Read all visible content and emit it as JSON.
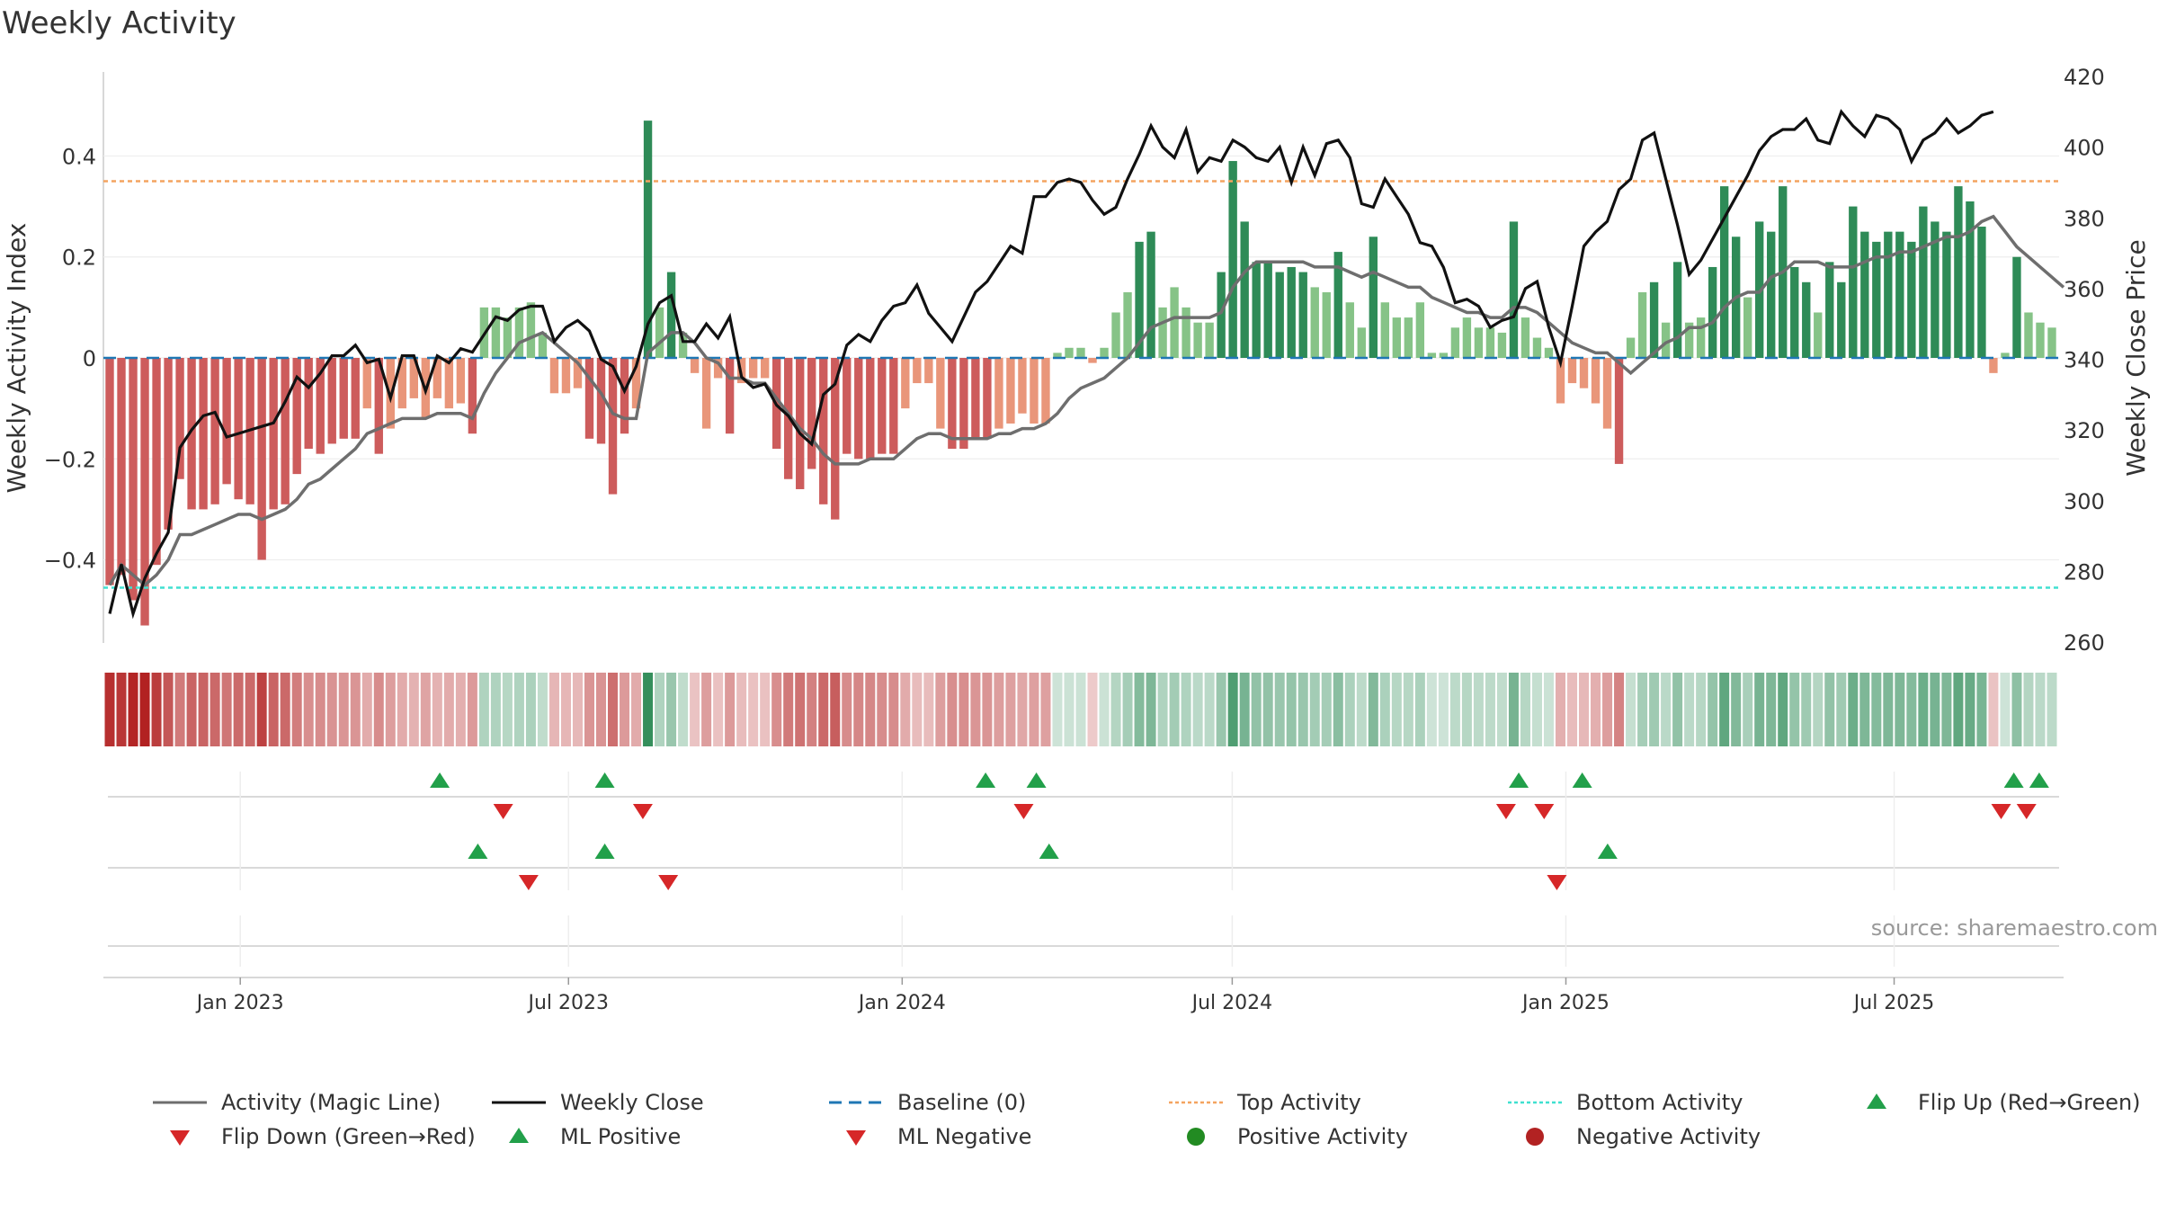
{
  "title": "Weekly Activity",
  "source": "source: sharemaestro.com",
  "colors": {
    "pos_strong": "#2e8b57",
    "pos_light": "#86c387",
    "neg_strong": "#cd5c5c",
    "neg_light": "#e9967a",
    "magic_line": "#6e6e6e",
    "close_line": "#111111",
    "baseline": "#1f77b4",
    "top": "#f4a460",
    "bottom": "#40e0d0",
    "tri_up": "#22a04a",
    "tri_down": "#d62728"
  },
  "chart_data": {
    "type": "bar",
    "title": "Weekly Activity",
    "ylabel": "Weekly Activity Index",
    "y2label": "Weekly Close Price",
    "ylim": [
      -0.57,
      0.57
    ],
    "y2lim": [
      255,
      420
    ],
    "yticks": [
      -0.4,
      -0.2,
      0,
      0.2,
      0.4
    ],
    "ytick_labels": [
      "−0.4",
      "−0.2",
      "0",
      "0.2",
      "0.4"
    ],
    "y2ticks": [
      260,
      280,
      300,
      320,
      340,
      360,
      380,
      400,
      420
    ],
    "start_date": "2022-10-21",
    "end_date": "2025-09-26",
    "xticks": [
      "2023-01-01",
      "2023-07-01",
      "2024-01-01",
      "2024-07-01",
      "2025-01-01",
      "2025-07-01"
    ],
    "xtick_labels": [
      "Jan 2023",
      "Jul 2023",
      "Jan 2024",
      "Jul 2024",
      "Jan 2025",
      "Jul 2025"
    ],
    "top_activity": 0.35,
    "bottom_activity": -0.455,
    "activity": [
      -0.45,
      -0.43,
      -0.48,
      -0.53,
      -0.41,
      -0.34,
      -0.24,
      -0.3,
      -0.3,
      -0.29,
      -0.25,
      -0.28,
      -0.29,
      -0.4,
      -0.3,
      -0.29,
      -0.23,
      -0.18,
      -0.19,
      -0.17,
      -0.16,
      -0.16,
      -0.1,
      -0.19,
      -0.14,
      -0.1,
      -0.08,
      -0.12,
      -0.08,
      -0.1,
      -0.09,
      -0.15,
      0.1,
      0.1,
      0.08,
      0.1,
      0.11,
      0.05,
      -0.07,
      -0.07,
      -0.06,
      -0.16,
      -0.17,
      -0.27,
      -0.15,
      -0.1,
      0.47,
      0.1,
      0.17,
      0.05,
      -0.03,
      -0.14,
      -0.04,
      -0.15,
      -0.05,
      -0.04,
      -0.04,
      -0.18,
      -0.24,
      -0.26,
      -0.22,
      -0.29,
      -0.32,
      -0.19,
      -0.2,
      -0.2,
      -0.19,
      -0.19,
      -0.1,
      -0.05,
      -0.05,
      -0.14,
      -0.18,
      -0.18,
      -0.16,
      -0.16,
      -0.14,
      -0.13,
      -0.11,
      -0.13,
      -0.13,
      0.01,
      0.02,
      0.02,
      -0.01,
      0.02,
      0.09,
      0.13,
      0.23,
      0.25,
      0.1,
      0.14,
      0.1,
      0.07,
      0.07,
      0.17,
      0.39,
      0.27,
      0.19,
      0.19,
      0.17,
      0.18,
      0.17,
      0.14,
      0.13,
      0.21,
      0.11,
      0.06,
      0.24,
      0.11,
      0.08,
      0.08,
      0.11,
      0.01,
      0.01,
      0.06,
      0.08,
      0.06,
      0.06,
      0.05,
      0.27,
      0.08,
      0.04,
      0.02,
      -0.09,
      -0.05,
      -0.06,
      -0.09,
      -0.14,
      -0.21,
      0.04,
      0.13,
      0.15,
      0.07,
      0.19,
      0.07,
      0.08,
      0.18,
      0.34,
      0.24,
      0.12,
      0.27,
      0.25,
      0.34,
      0.18,
      0.15,
      0.09,
      0.19,
      0.15,
      0.3,
      0.25,
      0.23,
      0.25,
      0.25,
      0.23,
      0.3,
      0.27,
      0.25,
      0.34,
      0.31,
      0.26,
      -0.03,
      0.01,
      0.2,
      0.09,
      0.07,
      0.06
    ],
    "magic_line": [
      -0.45,
      -0.41,
      -0.43,
      -0.45,
      -0.43,
      -0.4,
      -0.35,
      -0.35,
      -0.34,
      -0.33,
      -0.32,
      -0.31,
      -0.31,
      -0.32,
      -0.31,
      -0.3,
      -0.28,
      -0.25,
      -0.24,
      -0.22,
      -0.2,
      -0.18,
      -0.15,
      -0.14,
      -0.13,
      -0.12,
      -0.12,
      -0.12,
      -0.11,
      -0.11,
      -0.11,
      -0.12,
      -0.07,
      -0.03,
      0,
      0.03,
      0.04,
      0.05,
      0.03,
      0.01,
      -0.01,
      -0.04,
      -0.07,
      -0.11,
      -0.12,
      -0.12,
      0.01,
      0.03,
      0.05,
      0.05,
      0.03,
      0,
      -0.01,
      -0.04,
      -0.04,
      -0.05,
      -0.05,
      -0.08,
      -0.11,
      -0.14,
      -0.16,
      -0.19,
      -0.21,
      -0.21,
      -0.21,
      -0.2,
      -0.2,
      -0.2,
      -0.18,
      -0.16,
      -0.15,
      -0.15,
      -0.16,
      -0.16,
      -0.16,
      -0.16,
      -0.15,
      -0.15,
      -0.14,
      -0.14,
      -0.13,
      -0.11,
      -0.08,
      -0.06,
      -0.05,
      -0.04,
      -0.02,
      0,
      0.03,
      0.06,
      0.07,
      0.08,
      0.08,
      0.08,
      0.08,
      0.09,
      0.14,
      0.17,
      0.19,
      0.19,
      0.19,
      0.19,
      0.19,
      0.18,
      0.18,
      0.18,
      0.17,
      0.16,
      0.17,
      0.16,
      0.15,
      0.14,
      0.14,
      0.12,
      0.11,
      0.1,
      0.09,
      0.09,
      0.08,
      0.08,
      0.1,
      0.1,
      0.09,
      0.07,
      0.05,
      0.03,
      0.02,
      0.01,
      0.01,
      -0.01,
      -0.03,
      -0.01,
      0.01,
      0.03,
      0.04,
      0.06,
      0.06,
      0.07,
      0.1,
      0.12,
      0.13,
      0.13,
      0.16,
      0.17,
      0.19,
      0.19,
      0.19,
      0.18,
      0.18,
      0.18,
      0.19,
      0.2,
      0.2,
      0.21,
      0.21,
      0.22,
      0.23,
      0.24,
      0.24,
      0.25,
      0.27,
      0.28,
      0.25,
      0.22,
      0.2,
      0.18,
      0.16,
      0.14
    ],
    "weekly_close": [
      268,
      282,
      268,
      278,
      285,
      291,
      315,
      320,
      324,
      325,
      318,
      319,
      320,
      321,
      322,
      328,
      335,
      332,
      336,
      341,
      341,
      344,
      339,
      340,
      329,
      341,
      341,
      331,
      341,
      339,
      343,
      342,
      347,
      352,
      351,
      354,
      355,
      355,
      345,
      349,
      351,
      348,
      340,
      338,
      331,
      338,
      350,
      356,
      358,
      345,
      345,
      350,
      346,
      352,
      335,
      332,
      333,
      327,
      324,
      319,
      316,
      330,
      333,
      344,
      347,
      345,
      351,
      355,
      356,
      361,
      353,
      349,
      345,
      352,
      359,
      362,
      367,
      372,
      370,
      386,
      386,
      390,
      391,
      390,
      385,
      381,
      383,
      391,
      398,
      406,
      400,
      397,
      405,
      393,
      397,
      396,
      402,
      400,
      397,
      396,
      400,
      390,
      400,
      392,
      401,
      402,
      397,
      384,
      383,
      391,
      386,
      381,
      373,
      372,
      366,
      356,
      357,
      355,
      349,
      351,
      352,
      360,
      362,
      349,
      339,
      355,
      372,
      376,
      379,
      388,
      391,
      402,
      404,
      391,
      378,
      364,
      368,
      374,
      380,
      386,
      392,
      399,
      403,
      405,
      405,
      408,
      402,
      401,
      410,
      406,
      403,
      409,
      408,
      405,
      396,
      402,
      404,
      408,
      404,
      406,
      409,
      410
    ],
    "flip_up": [
      "2023-04-21",
      "2023-07-21",
      "2024-02-16",
      "2024-03-15",
      "2024-12-06",
      "2025-01-10",
      "2025-09-05",
      "2025-09-19"
    ],
    "flip_down": [
      "2023-05-26",
      "2023-08-11",
      "2024-03-08",
      "2024-11-29",
      "2024-12-20",
      "2025-08-29",
      "2025-09-12"
    ],
    "ml_positive": [
      "2023-05-12",
      "2023-07-21",
      "2024-03-22",
      "2025-01-24"
    ],
    "ml_negative": [
      "2023-06-09",
      "2023-08-25",
      "2024-12-27"
    ],
    "legend": [
      "Activity (Magic Line)",
      "Weekly Close",
      "Baseline (0)",
      "Top Activity",
      "Bottom Activity",
      "Flip Up (Red→Green)",
      "Flip Down (Green→Red)",
      "ML Positive",
      "ML Negative",
      "Positive Activity",
      "Negative Activity"
    ]
  }
}
